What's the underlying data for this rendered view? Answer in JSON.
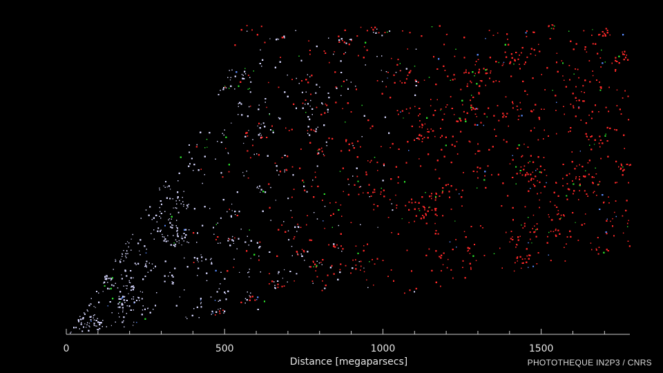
{
  "chart_data": {
    "type": "scatter",
    "xlabel": "Distance [megaparsecs]",
    "x_ticks_major": [
      0,
      500,
      1000,
      1500
    ],
    "x_ticks_minor_step": 100,
    "xlim": [
      0,
      1780
    ],
    "grid": false,
    "background": "#000000",
    "wedge_outline_mpc": {
      "apex": [
        0,
        0
      ],
      "upper_edge": [
        [
          0,
          0
        ],
        [
          500,
          880
        ],
        [
          550,
          990
        ],
        [
          1780,
          990
        ]
      ],
      "lower_edge": [
        [
          0,
          0
        ],
        [
          900,
          120
        ],
        [
          1780,
          260
        ]
      ]
    },
    "series": [
      {
        "color": "#d8d8ff",
        "x_range": [
          0,
          1000
        ]
      },
      {
        "color": "#ff2a2a",
        "x_range": [
          500,
          1780
        ]
      },
      {
        "color": "#2ee62e",
        "x_range": [
          50,
          1780
        ]
      },
      {
        "color": "#5a8cff",
        "x_range": [
          200,
          1780
        ]
      }
    ]
  },
  "credit": "PHOTOTHEQUE IN2P3 / CNRS"
}
